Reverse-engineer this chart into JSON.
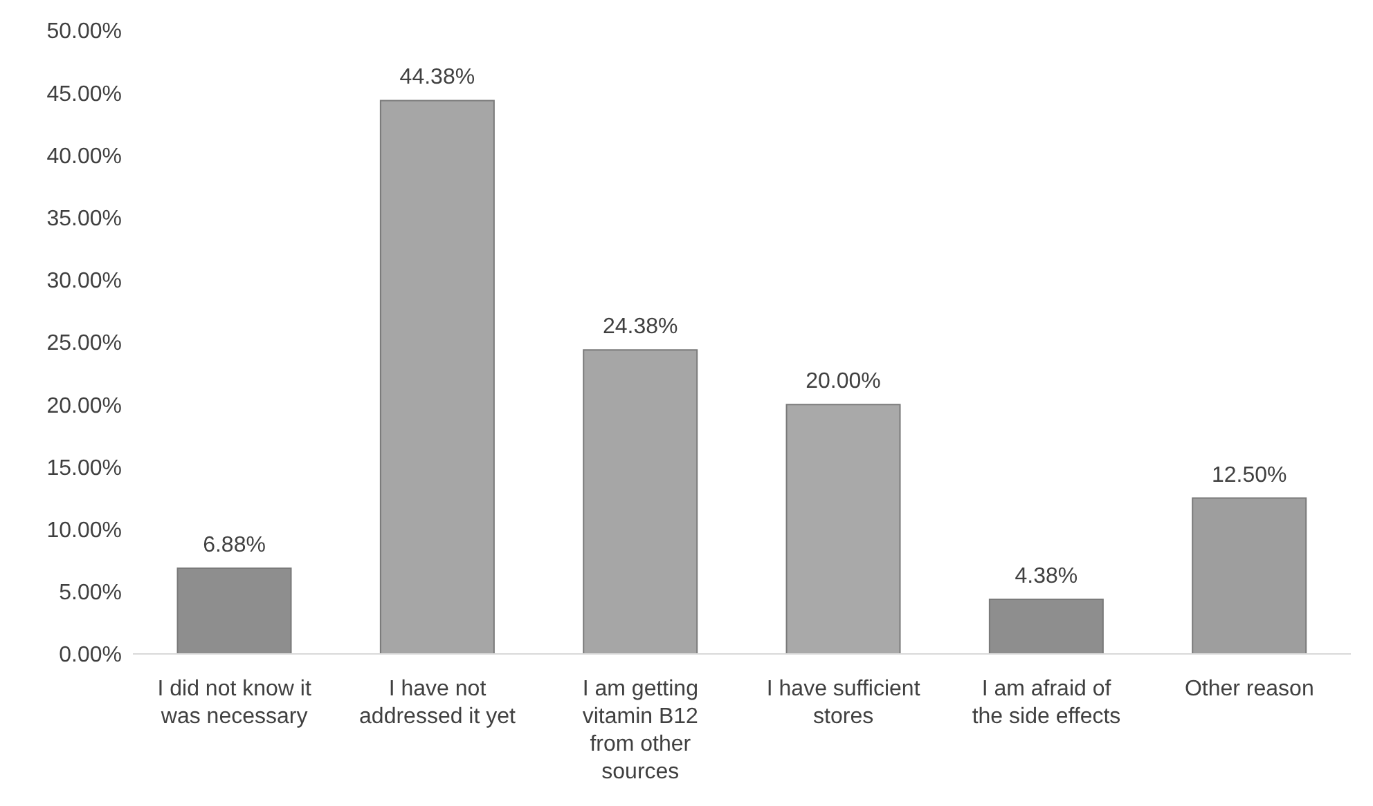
{
  "chart_data": {
    "type": "bar",
    "categories": [
      "I did not know it was necessary",
      "I have not addressed it yet",
      "I am getting vitamin B12 from other sources",
      "I have sufficient stores",
      "I am afraid of the side effects",
      "Other reason"
    ],
    "values": [
      6.88,
      44.38,
      24.38,
      20.0,
      4.38,
      12.5
    ],
    "value_labels": [
      "6.88%",
      "44.38%",
      "24.38%",
      "20.00%",
      "4.38%",
      "12.50%"
    ],
    "colors": [
      "#8e8e8e",
      "#a6a6a6",
      "#a6a6a6",
      "#a9a9a9",
      "#8e8e8e",
      "#9e9e9e"
    ],
    "ylim": [
      0,
      50
    ],
    "yticks": [
      {
        "value": 0,
        "label": "0.00%"
      },
      {
        "value": 5,
        "label": "5.00%"
      },
      {
        "value": 10,
        "label": "10.00%"
      },
      {
        "value": 15,
        "label": "15.00%"
      },
      {
        "value": 20,
        "label": "20.00%"
      },
      {
        "value": 25,
        "label": "25.00%"
      },
      {
        "value": 30,
        "label": "30.00%"
      },
      {
        "value": 35,
        "label": "35.00%"
      },
      {
        "value": 40,
        "label": "40.00%"
      },
      {
        "value": 45,
        "label": "45.00%"
      },
      {
        "value": 50,
        "label": "50.00%"
      }
    ],
    "grid": false,
    "legend": false
  }
}
